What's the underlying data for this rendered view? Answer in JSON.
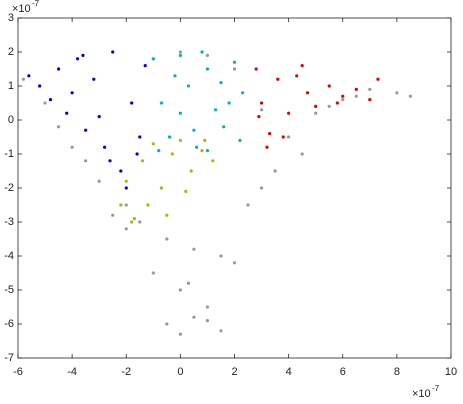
{
  "chart_data": {
    "type": "scatter",
    "x_scale_label": "×10",
    "x_scale_exponent": "-7",
    "y_scale_label": "×10",
    "y_scale_exponent": "-7",
    "xlim": [
      -6,
      10
    ],
    "xticks": [
      -6,
      -4,
      -2,
      0,
      2,
      4,
      6,
      8,
      10
    ],
    "ylim": [
      -7,
      3
    ],
    "yticks": [
      -7,
      -6,
      -5,
      -4,
      -3,
      -2,
      -1,
      0,
      1,
      2,
      3
    ],
    "grid": false,
    "series": [
      {
        "color": "#999999",
        "x": [
          -5.8,
          -5,
          -4,
          -3,
          -2,
          -1,
          0,
          1,
          2,
          3,
          4,
          5,
          6,
          7,
          8,
          8.5,
          -4.5,
          -3.5,
          -2.5,
          -1.5,
          -0.5,
          0.5,
          1.5,
          2.5,
          3.5,
          4.5,
          5.5,
          6.5,
          -1,
          0,
          1,
          2,
          -0.5,
          0.5,
          1.5,
          0,
          1,
          -2,
          3,
          0.3
        ],
        "values": [
          1.2,
          0.5,
          -0.8,
          -1.8,
          -2.5,
          1.8,
          2,
          1.9,
          1.5,
          0.3,
          -0.5,
          0.2,
          0.6,
          0.9,
          0.8,
          0.7,
          -0.2,
          -1.2,
          -2.8,
          -3,
          -3.5,
          -3.8,
          -4,
          -2.5,
          -1.5,
          -1,
          0.4,
          0.7,
          -4.5,
          -5,
          -5.5,
          -4.2,
          -6,
          -5.8,
          -6.2,
          -6.3,
          -5.9,
          -3.2,
          -2,
          -4.8
        ]
      },
      {
        "color": "#0000e0",
        "x": [
          -5.6,
          -5.2,
          -4.8,
          -4.5,
          -4.2,
          -3.8,
          -3.5,
          -3.2,
          -2.8,
          -2.5,
          -2.2,
          -1.8,
          -1.5,
          -1.3,
          -4,
          -3,
          -2,
          -3.6,
          -2.6,
          -1.6
        ],
        "values": [
          1.3,
          1.0,
          0.6,
          1.5,
          0.2,
          1.8,
          -0.3,
          1.2,
          -0.8,
          2.0,
          -1.5,
          0.5,
          -0.5,
          1.6,
          0.8,
          0.1,
          -2,
          1.9,
          -1.2,
          -1
        ]
      },
      {
        "color": "#00b4b4",
        "x": [
          -1,
          -0.7,
          -0.4,
          0,
          0.3,
          0.6,
          1,
          1.3,
          1.6,
          2,
          2.3,
          -0.8,
          0,
          0.8,
          1.5,
          2.2,
          -0.2,
          1,
          1.8,
          0.5
        ],
        "values": [
          1.8,
          0.5,
          -0.5,
          1.9,
          1,
          -0.8,
          1.5,
          0.3,
          -0.2,
          1.7,
          0.8,
          -0.9,
          0.2,
          2,
          1.1,
          -0.6,
          1.3,
          -0.9,
          0.5,
          -0.3
        ]
      },
      {
        "color": "#e00000",
        "x": [
          2.8,
          3,
          3.3,
          3.6,
          4,
          4.3,
          4.7,
          5,
          5.5,
          6,
          6.5,
          7,
          3.2,
          3.8,
          4.5,
          2.9,
          5.8,
          7.3
        ],
        "values": [
          1.5,
          0.5,
          -0.4,
          1.2,
          0.2,
          1.3,
          0.8,
          0.4,
          1.0,
          0.7,
          0.9,
          0.6,
          -0.8,
          -0.5,
          1.6,
          0.1,
          0.5,
          1.2
        ]
      },
      {
        "color": "#b4b400",
        "x": [
          -2.2,
          -2,
          -1.7,
          -1.4,
          -1,
          -0.7,
          -0.3,
          0,
          0.4,
          0.8,
          1.2,
          -1.2,
          -0.5,
          0.2,
          -1.8,
          0.9
        ],
        "values": [
          -2.5,
          -1.8,
          -2.9,
          -1.2,
          -0.7,
          -2,
          -1,
          -0.6,
          -1.5,
          -0.9,
          -1.2,
          -2.5,
          -2.8,
          -2.1,
          -3,
          -0.6
        ]
      }
    ]
  }
}
